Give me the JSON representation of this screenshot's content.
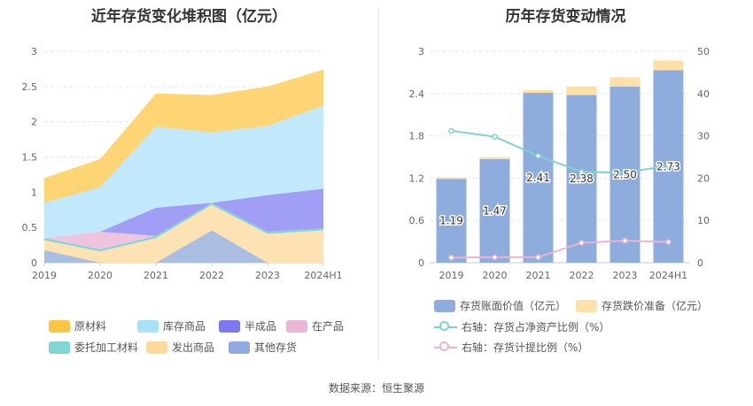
{
  "left_title": "近年存货变化堆积图（亿元）",
  "right_title": "历年存货变动情况",
  "source": "数据来源：恒生聚源",
  "chart_data": [
    {
      "type": "area",
      "title": "近年存货变化堆积图（亿元）",
      "categories": [
        "2019",
        "2020",
        "2021",
        "2022",
        "2023",
        "2024H1"
      ],
      "y_ticks": [
        "0",
        "0.5",
        "1",
        "1.5",
        "2",
        "2.5",
        "3"
      ],
      "ylim": [
        0,
        3
      ],
      "stack_order_bottom_to_top": [
        "其他存货",
        "发出商品",
        "委托加工材料",
        "在产品",
        "半成品",
        "库存商品",
        "原材料"
      ],
      "series": [
        {
          "name": "其他存货",
          "color": "#a9bee0",
          "values": [
            0.18,
            0.0,
            0.0,
            0.46,
            0.0,
            0.0
          ]
        },
        {
          "name": "发出商品",
          "color": "#fde3b3",
          "values": [
            0.14,
            0.16,
            0.35,
            0.36,
            0.41,
            0.46
          ]
        },
        {
          "name": "委托加工材料",
          "color": "#7fd6d5",
          "values": [
            0.03,
            0.03,
            0.03,
            0.03,
            0.03,
            0.03
          ]
        },
        {
          "name": "在产品",
          "color": "#eec4de",
          "values": [
            0.0,
            0.25,
            0.0,
            0.0,
            0.0,
            0.0
          ]
        },
        {
          "name": "半成品",
          "color": "#a09ff5",
          "values": [
            0.0,
            0.0,
            0.4,
            0.0,
            0.52,
            0.56
          ]
        },
        {
          "name": "库存商品",
          "color": "#c1e9fb",
          "values": [
            0.5,
            0.63,
            1.15,
            1.0,
            0.98,
            1.18
          ]
        },
        {
          "name": "原材料",
          "color": "#fdd575",
          "values": [
            0.35,
            0.4,
            0.47,
            0.53,
            0.56,
            0.51
          ]
        }
      ],
      "legend": [
        {
          "name": "原材料",
          "color": "#fdc542"
        },
        {
          "name": "库存商品",
          "color": "#a8e1fa"
        },
        {
          "name": "半成品",
          "color": "#7a79f0"
        },
        {
          "name": "在产品",
          "color": "#e9b6d6"
        },
        {
          "name": "委托加工材料",
          "color": "#7fd6d5"
        },
        {
          "name": "发出商品",
          "color": "#fdd99a"
        },
        {
          "name": "其他存货",
          "color": "#8faadc"
        }
      ]
    },
    {
      "type": "bar",
      "title": "历年存货变动情况",
      "categories": [
        "2019",
        "2020",
        "2021",
        "2022",
        "2023",
        "2024H1"
      ],
      "ylim_left": [
        0,
        3
      ],
      "ylim_right": [
        0,
        50
      ],
      "y_ticks_left": [
        "0",
        "0.6",
        "1.2",
        "1.8",
        "2.4",
        "3"
      ],
      "y_ticks_right": [
        "0",
        "10",
        "20",
        "30",
        "40",
        "50"
      ],
      "series": [
        {
          "name": "存货账面价值（亿元）",
          "color": "#8eacdc",
          "values": [
            1.19,
            1.47,
            2.41,
            2.38,
            2.5,
            2.73
          ],
          "labels": [
            "1.19",
            "1.47",
            "2.41",
            "2.38",
            "2.50",
            "2.73"
          ]
        },
        {
          "name": "存货跌价准备（亿元）",
          "color": "#fde0a8",
          "values": [
            0.02,
            0.03,
            0.04,
            0.12,
            0.13,
            0.14
          ]
        },
        {
          "name": "右轴：存货占净资产比例（%）",
          "color": "#7fd1d2",
          "axis": "right",
          "values": [
            31.2,
            29.8,
            25.3,
            21.5,
            21.3,
            23.0
          ]
        },
        {
          "name": "右轴：存货计提比例（%）",
          "color": "#eab5d5",
          "axis": "right",
          "values": [
            1.2,
            1.3,
            1.3,
            4.7,
            5.2,
            4.9
          ]
        }
      ]
    }
  ]
}
